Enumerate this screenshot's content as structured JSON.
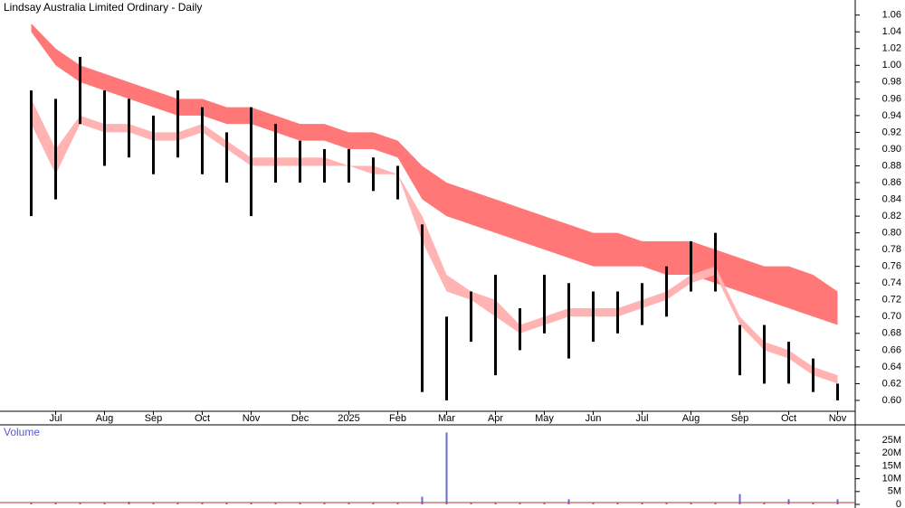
{
  "chart_data": [
    {
      "type": "range",
      "title": "Lindsay Australia Limited Ordinary - Daily",
      "categories": [
        null,
        "Jul",
        null,
        "Aug",
        null,
        "Sep",
        null,
        "Oct",
        null,
        "Nov",
        null,
        "Dec",
        null,
        "2025",
        null,
        "Feb",
        null,
        "Mar",
        null,
        "Apr",
        null,
        "May",
        null,
        "Jun",
        null,
        "Jul",
        null,
        "Aug",
        null,
        "Sep",
        null,
        "Oct",
        null,
        "Nov"
      ],
      "high": [
        0.97,
        0.96,
        1.01,
        0.97,
        0.96,
        0.94,
        0.97,
        0.95,
        0.92,
        0.95,
        0.93,
        0.91,
        0.9,
        0.9,
        0.89,
        0.88,
        0.81,
        0.7,
        0.73,
        0.75,
        0.71,
        0.75,
        0.74,
        0.73,
        0.73,
        0.74,
        0.76,
        0.79,
        0.8,
        0.69,
        0.69,
        0.67,
        0.65,
        0.62
      ],
      "low": [
        0.82,
        0.84,
        0.93,
        0.88,
        0.89,
        0.87,
        0.89,
        0.87,
        0.86,
        0.82,
        0.86,
        0.86,
        0.86,
        0.86,
        0.85,
        0.84,
        0.61,
        0.6,
        0.67,
        0.63,
        0.66,
        0.68,
        0.65,
        0.67,
        0.68,
        0.69,
        0.7,
        0.73,
        0.73,
        0.63,
        0.62,
        0.62,
        0.61,
        0.6
      ],
      "color": "#000000",
      "bands": [
        {
          "color": "#ff7777",
          "upper": [
            1.05,
            1.02,
            1.0,
            0.99,
            0.98,
            0.97,
            0.96,
            0.96,
            0.95,
            0.95,
            0.94,
            0.93,
            0.93,
            0.92,
            0.92,
            0.91,
            0.88,
            0.86,
            0.85,
            0.84,
            0.83,
            0.82,
            0.81,
            0.8,
            0.8,
            0.79,
            0.79,
            0.79,
            0.78,
            0.77,
            0.76,
            0.76,
            0.75,
            0.73
          ],
          "lower": [
            1.04,
            1.0,
            0.98,
            0.97,
            0.96,
            0.95,
            0.94,
            0.94,
            0.93,
            0.93,
            0.92,
            0.91,
            0.91,
            0.9,
            0.9,
            0.89,
            0.84,
            0.82,
            0.81,
            0.8,
            0.79,
            0.78,
            0.77,
            0.76,
            0.76,
            0.76,
            0.75,
            0.75,
            0.74,
            0.73,
            0.72,
            0.71,
            0.7,
            0.69
          ]
        },
        {
          "color": "#ffb3b3",
          "upper": [
            0.96,
            0.9,
            0.94,
            0.93,
            0.93,
            0.92,
            0.92,
            0.93,
            0.91,
            0.89,
            0.89,
            0.89,
            0.89,
            0.88,
            0.88,
            0.87,
            0.82,
            0.75,
            0.73,
            0.72,
            0.69,
            0.7,
            0.71,
            0.71,
            0.71,
            0.72,
            0.73,
            0.75,
            0.76,
            0.7,
            0.67,
            0.66,
            0.64,
            0.63
          ],
          "lower": [
            0.93,
            0.87,
            0.93,
            0.92,
            0.92,
            0.91,
            0.91,
            0.92,
            0.9,
            0.88,
            0.88,
            0.88,
            0.88,
            0.88,
            0.87,
            0.87,
            0.79,
            0.73,
            0.72,
            0.7,
            0.68,
            0.69,
            0.7,
            0.7,
            0.7,
            0.71,
            0.72,
            0.74,
            0.75,
            0.69,
            0.66,
            0.65,
            0.63,
            0.62
          ]
        }
      ],
      "ylim": [
        0.587,
        1.078
      ],
      "yticks": [
        {
          "value": 0.6,
          "label": "0.60"
        },
        {
          "value": 0.62,
          "label": "0.62"
        },
        {
          "value": 0.64,
          "label": "0.64"
        },
        {
          "value": 0.66,
          "label": "0.66"
        },
        {
          "value": 0.68,
          "label": "0.68"
        },
        {
          "value": 0.7,
          "label": "0.70"
        },
        {
          "value": 0.72,
          "label": "0.72"
        },
        {
          "value": 0.74,
          "label": "0.74"
        },
        {
          "value": 0.76,
          "label": "0.76"
        },
        {
          "value": 0.78,
          "label": "0.78"
        },
        {
          "value": 0.8,
          "label": "0.80"
        },
        {
          "value": 0.82,
          "label": "0.82"
        },
        {
          "value": 0.84,
          "label": "0.84"
        },
        {
          "value": 0.86,
          "label": "0.86"
        },
        {
          "value": 0.88,
          "label": "0.88"
        },
        {
          "value": 0.9,
          "label": "0.90"
        },
        {
          "value": 0.92,
          "label": "0.92"
        },
        {
          "value": 0.94,
          "label": "0.94"
        },
        {
          "value": 0.96,
          "label": "0.96"
        },
        {
          "value": 0.98,
          "label": "0.98"
        },
        {
          "value": 1.0,
          "label": "1.00"
        },
        {
          "value": 1.02,
          "label": "1.02"
        },
        {
          "value": 1.04,
          "label": "1.04"
        },
        {
          "value": 1.06,
          "label": "1.06"
        }
      ]
    },
    {
      "type": "bar",
      "title": "Volume",
      "values": [
        0.5,
        0.5,
        0.5,
        0.5,
        1,
        0.5,
        0.5,
        0.5,
        0.5,
        0.5,
        0.5,
        0.5,
        0.5,
        0.5,
        0.5,
        0.5,
        3,
        28,
        0.5,
        0.5,
        0.5,
        0.5,
        2,
        0.5,
        0.5,
        0.5,
        0.5,
        0.5,
        0.5,
        4,
        0.5,
        2,
        0.5,
        2
      ],
      "color": "#6b6bd6",
      "ylim": [
        0,
        31
      ],
      "yticks": [
        0,
        {
          "value": 5,
          "label": "5M"
        },
        {
          "value": 10,
          "label": "10M"
        },
        {
          "value": 15,
          "label": "15M"
        },
        {
          "value": 20,
          "label": "20M"
        },
        {
          "value": 25,
          "label": "25M"
        }
      ]
    }
  ]
}
